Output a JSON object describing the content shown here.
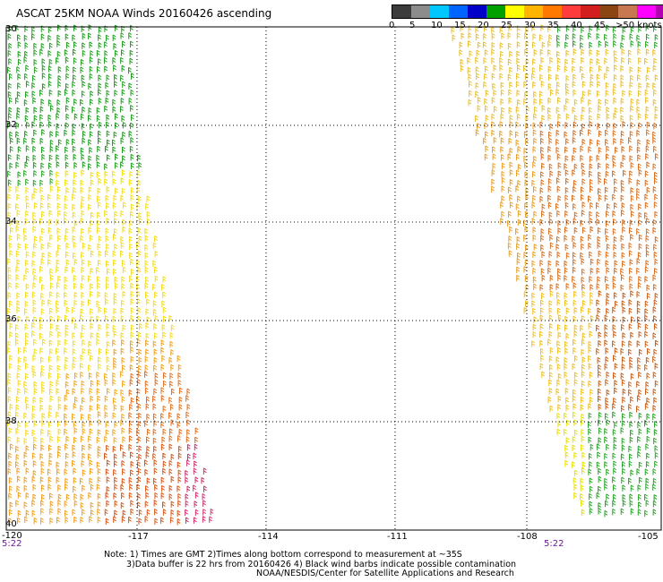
{
  "title": "ASCAT 25KM NOAA Winds 20160426 ascending",
  "legend": {
    "labels": [
      "0",
      "5",
      "10",
      "15",
      "20",
      "25",
      "30",
      "35",
      "40",
      "45",
      ">50 knots"
    ],
    "colors": [
      "#3c3c3c",
      "#8c8c8c",
      "#00c8ff",
      "#0064ff",
      "#0000c8",
      "#00a000",
      "#ffff00",
      "#ffb400",
      "#ff7800",
      "#ff3c3c",
      "#d21e1e",
      "#8b4513",
      "#c87850",
      "#ff00ff",
      "#b400b4",
      "#5a0082"
    ]
  },
  "map": {
    "lat_labels": [
      "30",
      "32",
      "34",
      "36",
      "38",
      "40"
    ],
    "lon_labels": [
      "-120",
      "-117",
      "-114",
      "-111",
      "-108",
      "-105"
    ],
    "times": [
      "5:22",
      "5:22"
    ]
  },
  "notes": {
    "line1": "Note: 1) Times are GMT 2)Times along bottom correspond to measurement at ~35S",
    "line2": "3)Data buffer is 22 hrs from 20160426 4) Black wind barbs indicate possible contamination",
    "line3": "NOAA/NESDIS/Center for Satellite Applications and Research"
  }
}
